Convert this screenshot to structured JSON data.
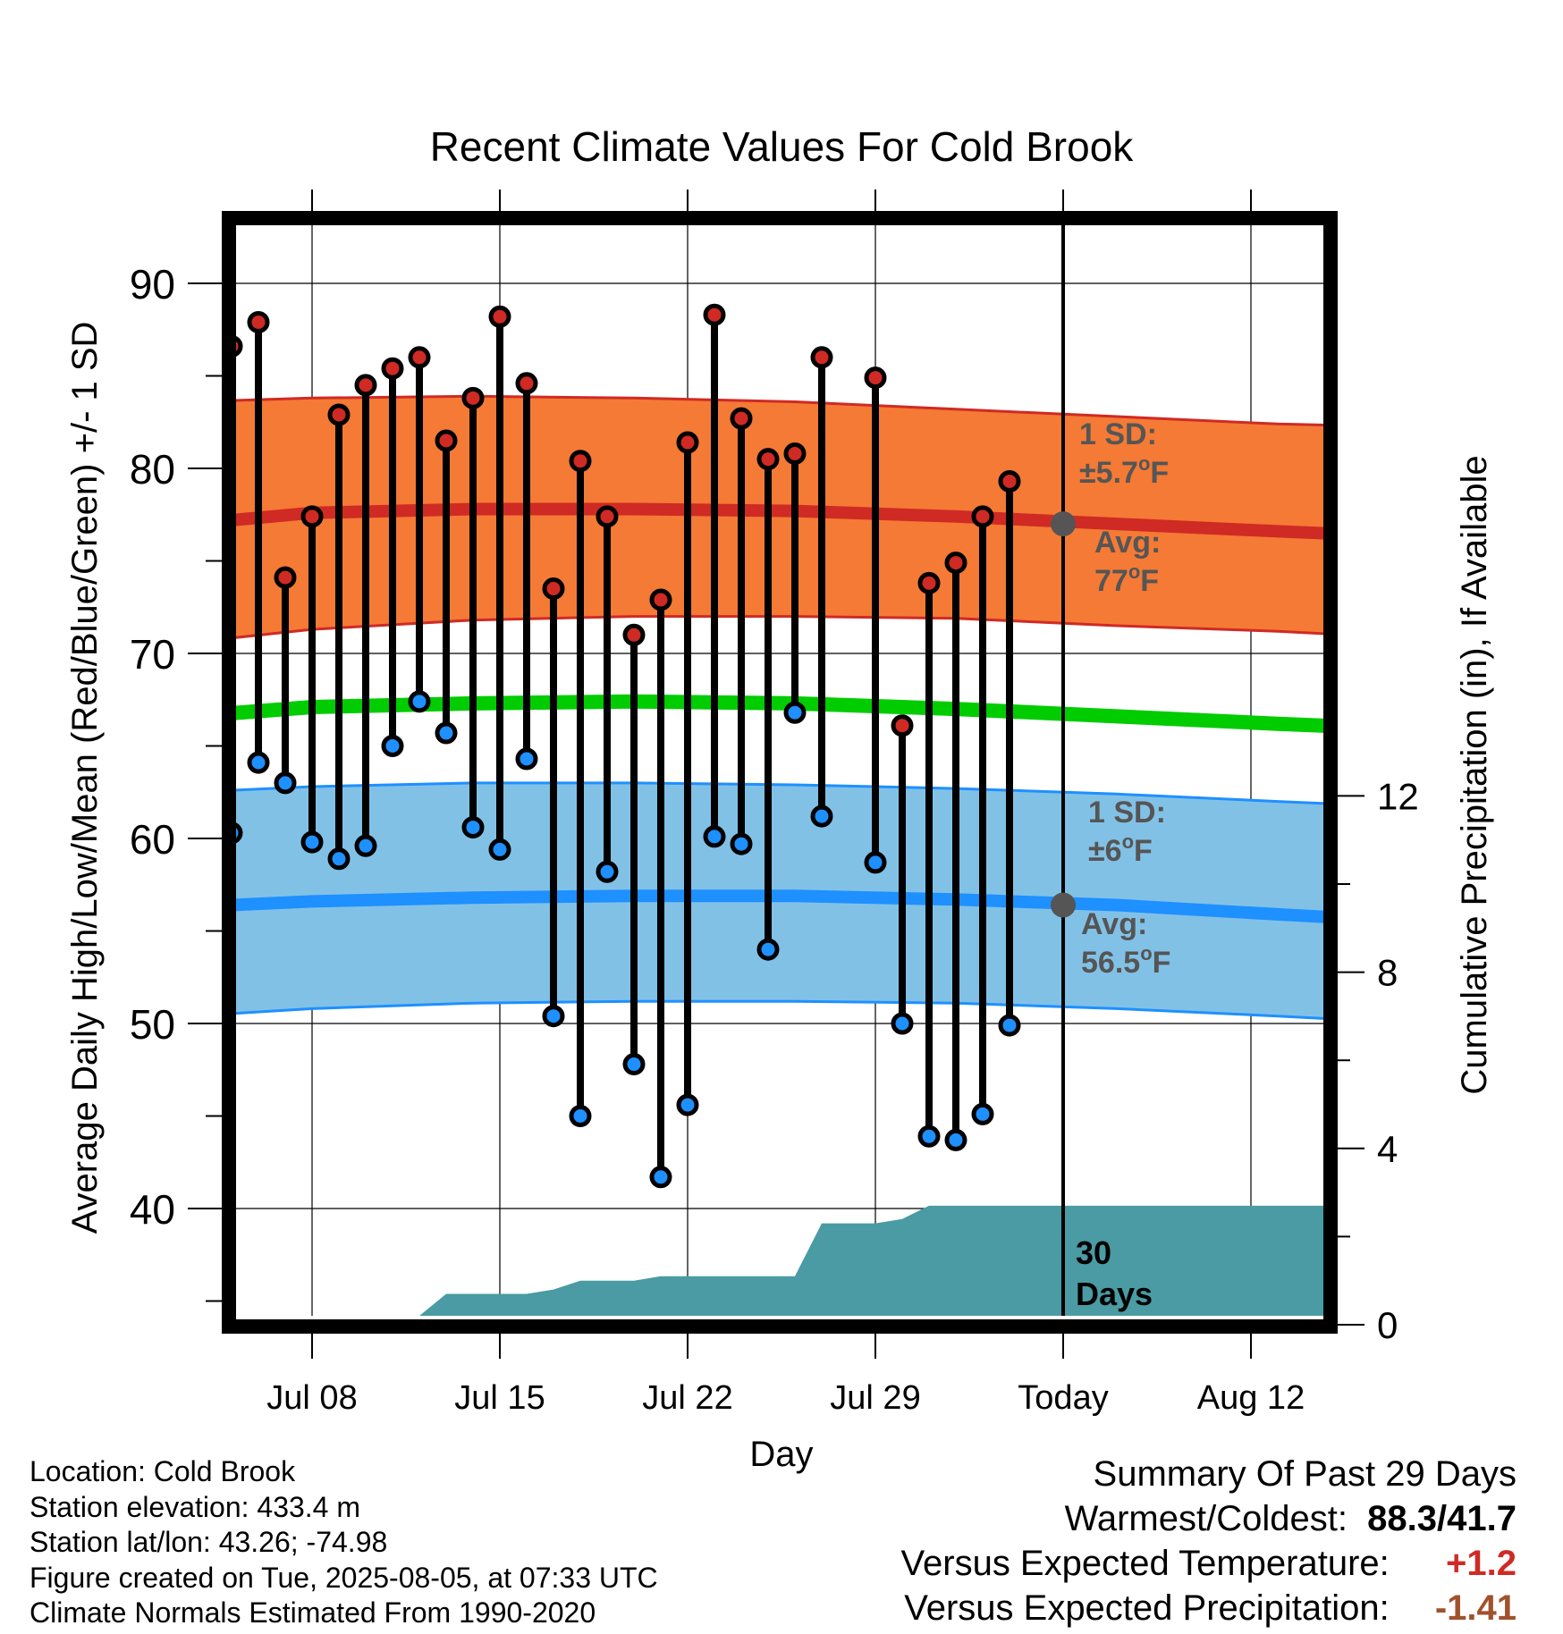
{
  "chart_data": {
    "type": "line",
    "title": "Recent Climate Values For Cold Brook",
    "xlabel": "Day",
    "ylabel": "Average Daily High/Low/Mean (Red/Blue/Green) +/- 1 SD",
    "ylabel_right": "Cumulative Precipitation (in), If Available",
    "ylim": [
      34,
      95
    ],
    "y2lim": [
      0,
      24
    ],
    "xlim": [
      3.5,
      50.5
    ],
    "x_ticks": [
      {
        "x": 8,
        "label": "Jul 08"
      },
      {
        "x": 15,
        "label": "Jul 15"
      },
      {
        "x": 22,
        "label": "Jul 22"
      },
      {
        "x": 29,
        "label": "Jul 29"
      },
      {
        "x": 36,
        "label": "Today"
      },
      {
        "x": 43,
        "label": "Aug 12"
      }
    ],
    "y_ticks": [
      40,
      50,
      60,
      70,
      80,
      90
    ],
    "y2_ticks": [
      0,
      4,
      8,
      12
    ],
    "today_x": 36,
    "days": [
      5,
      6,
      7,
      8,
      9,
      10,
      11,
      12,
      13,
      14,
      15,
      16,
      17,
      18,
      19,
      20,
      21,
      22,
      23,
      24,
      25,
      26,
      27,
      28,
      29,
      30,
      31,
      32,
      33,
      34,
      35
    ],
    "highs": [
      86.6,
      87.9,
      74.1,
      77.4,
      82.9,
      84.5,
      85.4,
      86.0,
      81.5,
      83.8,
      88.2,
      84.6,
      73.5,
      80.4,
      77.4,
      71.0,
      72.9,
      81.4,
      88.3,
      82.7,
      80.5,
      80.8,
      86.0,
      null,
      84.9,
      66.1,
      73.8,
      74.9,
      77.4,
      79.3,
      null
    ],
    "lows": [
      60.3,
      64.1,
      63.0,
      59.8,
      58.9,
      59.6,
      65.0,
      67.4,
      65.7,
      60.6,
      59.4,
      64.3,
      50.4,
      45.0,
      58.2,
      47.8,
      41.7,
      45.6,
      60.1,
      59.7,
      54.0,
      66.8,
      61.2,
      null,
      58.7,
      50.0,
      43.9,
      43.7,
      45.1,
      49.9,
      null
    ],
    "normal_high": {
      "x": [
        3.5,
        8,
        14,
        20,
        26,
        32,
        38,
        44,
        50.5
      ],
      "avg": [
        77.0,
        77.6,
        77.8,
        77.8,
        77.7,
        77.4,
        77.0,
        76.6,
        76.2
      ],
      "upper": [
        83.6,
        83.8,
        83.9,
        83.8,
        83.6,
        83.2,
        82.8,
        82.4,
        82.2
      ],
      "lower": [
        70.6,
        71.3,
        71.8,
        72.0,
        72.0,
        71.9,
        71.5,
        71.2,
        70.7
      ]
    },
    "normal_low": {
      "x": [
        3.5,
        8,
        14,
        20,
        26,
        32,
        38,
        44,
        50.5
      ],
      "avg": [
        56.3,
        56.6,
        56.8,
        56.9,
        56.9,
        56.7,
        56.4,
        55.9,
        55.4
      ],
      "upper": [
        62.5,
        62.8,
        63.0,
        63.0,
        62.9,
        62.7,
        62.4,
        62.0,
        61.6
      ],
      "lower": [
        50.4,
        50.8,
        51.1,
        51.2,
        51.2,
        51.1,
        50.8,
        50.4,
        49.9
      ]
    },
    "normal_mean": {
      "x": [
        3.5,
        8,
        14,
        20,
        26,
        32,
        38,
        44,
        50.5
      ],
      "values": [
        66.6,
        67.1,
        67.3,
        67.4,
        67.3,
        67.0,
        66.6,
        66.2,
        65.8
      ]
    },
    "precip_cumulative": {
      "x": [
        3.5,
        11,
        12,
        13,
        15,
        16,
        17,
        18,
        20,
        21,
        26,
        27,
        29,
        30,
        31,
        50.5
      ],
      "values": [
        0,
        0,
        0.2,
        0.7,
        0.7,
        0.7,
        0.8,
        1.0,
        1.0,
        1.1,
        1.1,
        2.3,
        2.3,
        2.4,
        2.7,
        2.7
      ]
    },
    "annotations": {
      "high_sd_label": "1 SD:",
      "high_sd_value": "±5.7",
      "high_avg_label": "Avg:",
      "high_avg_value": "77",
      "low_sd_label": "1 SD:",
      "low_sd_value": "±6",
      "low_avg_label": "Avg:",
      "low_avg_value": "56.5",
      "deg_unit": "o",
      "f_unit": "F",
      "days_number": "30",
      "days_word": "Days"
    },
    "colors": {
      "high_band": "#f47a35",
      "high_line": "#d02a24",
      "low_band": "#82c1e6",
      "low_line": "#1e90ff",
      "mean_line": "#00cc00",
      "precip": "#4a9ba3",
      "marker_high": "#d02a24",
      "marker_low": "#1e90ff",
      "annotation": "#555555"
    }
  },
  "info": {
    "location": "Location: Cold Brook",
    "elevation": "Station elevation: 433.4 m",
    "latlon": "Station lat/lon: 43.26; -74.98",
    "created": "Figure created on Tue, 2025-08-05, at 07:33 UTC",
    "normals": "Climate Normals Estimated From 1990-2020"
  },
  "summary": {
    "title": "Summary Of Past 29 Days",
    "warmest_label": "Warmest/Coldest:",
    "warmest_value": "88.3/41.7",
    "temp_label": "Versus Expected Temperature:",
    "temp_value": "+1.2",
    "precip_label": "Versus Expected Precipitation:",
    "precip_value": "-1.41"
  }
}
